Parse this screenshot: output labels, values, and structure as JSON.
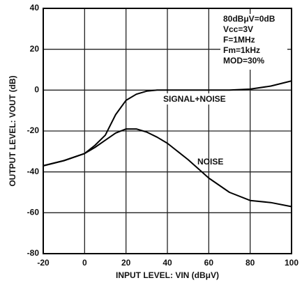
{
  "chart_data": {
    "type": "line",
    "xlabel": "INPUT LEVEL: VIN (dBμV)",
    "ylabel": "OUTPUT LEVEL: VOUT (dB)",
    "annotations": [
      "80dBμV=0dB",
      "Vcc=3V",
      "F=1MHz",
      "Fm=1kHz",
      "MOD=30%"
    ],
    "x": [
      -20,
      -10,
      0,
      5,
      10,
      15,
      20,
      25,
      30,
      35,
      40,
      50,
      60,
      70,
      80,
      90,
      100
    ],
    "series": [
      {
        "name": "SIGNAL+NOISE",
        "color": "#000000",
        "values": [
          -37,
          -34.5,
          -31,
          -27,
          -22,
          -12,
          -5,
          -2,
          -0.5,
          0,
          0,
          0,
          0,
          0,
          0.5,
          2,
          4.5
        ]
      },
      {
        "name": "NOISE",
        "color": "#000000",
        "values": [
          -37,
          -34.5,
          -31,
          -28,
          -24.5,
          -21,
          -19,
          -19,
          -20.5,
          -23,
          -26,
          -34,
          -43,
          -50,
          -54,
          -55,
          -57
        ]
      }
    ],
    "xlim": [
      -20,
      100
    ],
    "xticks": [
      -20,
      0,
      20,
      40,
      60,
      80,
      100
    ],
    "ylim": [
      -80,
      40
    ],
    "yticks": [
      -80,
      -60,
      -40,
      -20,
      0,
      20,
      40
    ],
    "grid": true
  }
}
